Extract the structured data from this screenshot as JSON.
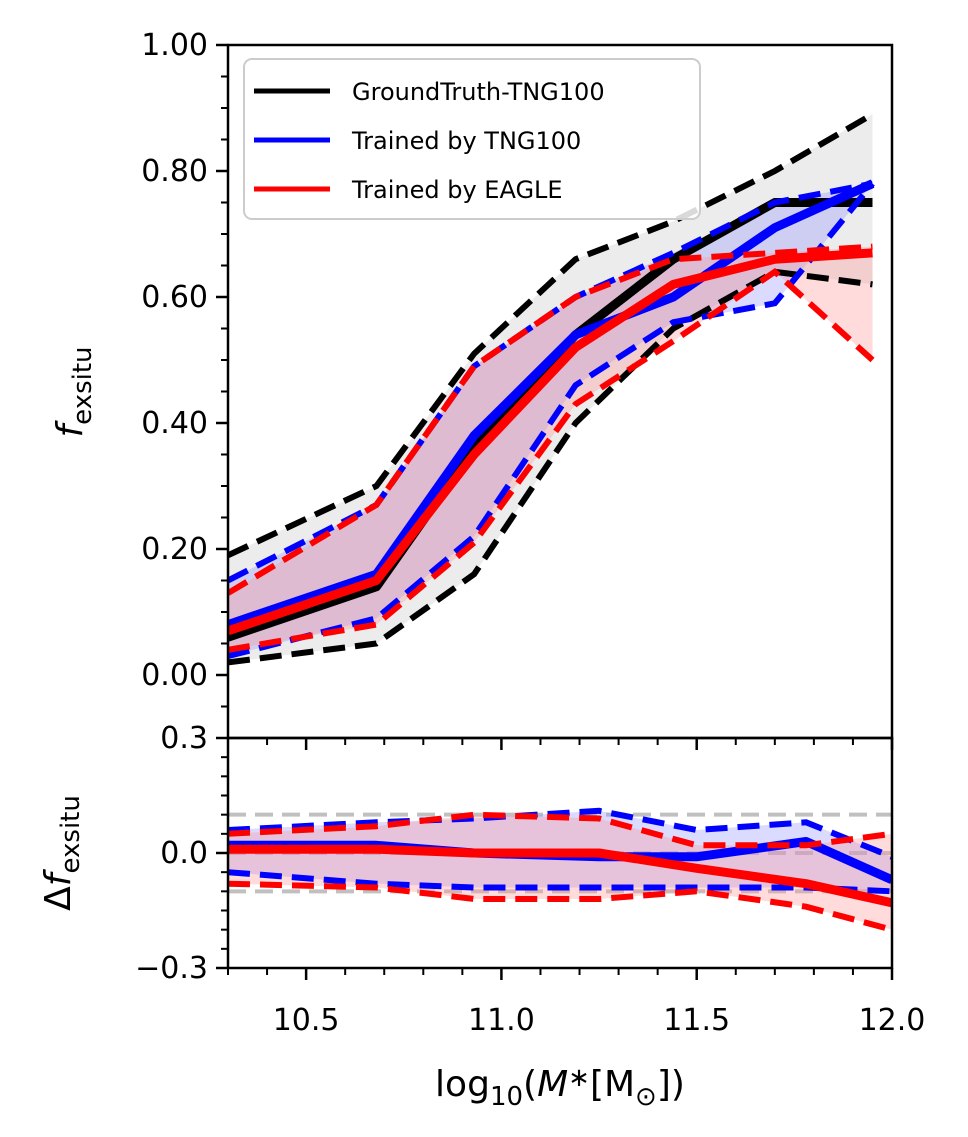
{
  "chart_data": [
    {
      "panel": "top",
      "type": "line",
      "ylabel": "f_exsitu",
      "ylim": [
        -0.1,
        1.0
      ],
      "xlim": [
        10.3,
        12.0
      ],
      "yticks": [
        "0.00",
        "0.20",
        "0.40",
        "0.60",
        "0.80",
        "1.00"
      ],
      "ytick_values": [
        0.0,
        0.2,
        0.4,
        0.6,
        0.8,
        1.0
      ],
      "legend": {
        "placement": "top-left",
        "entries": [
          "GroundTruth-TNG100",
          "Trained by TNG100",
          "Trained by EAGLE"
        ]
      },
      "series": [
        {
          "name": "GroundTruth-TNG100",
          "color": "#000000",
          "x": [
            10.3,
            10.68,
            10.93,
            11.19,
            11.44,
            11.7,
            11.95
          ],
          "median": [
            0.06,
            0.14,
            0.36,
            0.54,
            0.66,
            0.75,
            0.75
          ],
          "upper": [
            0.19,
            0.3,
            0.51,
            0.66,
            0.72,
            0.8,
            0.89
          ],
          "lower": [
            0.02,
            0.05,
            0.16,
            0.4,
            0.55,
            0.64,
            0.62
          ],
          "band_color": "#c8c8c8"
        },
        {
          "name": "Trained by TNG100",
          "color": "#0000ff",
          "x": [
            10.3,
            10.68,
            10.93,
            11.19,
            11.44,
            11.7,
            11.95
          ],
          "median": [
            0.08,
            0.16,
            0.38,
            0.54,
            0.6,
            0.71,
            0.78
          ],
          "upper": [
            0.15,
            0.27,
            0.49,
            0.6,
            0.67,
            0.75,
            0.78
          ],
          "lower": [
            0.03,
            0.09,
            0.22,
            0.46,
            0.56,
            0.59,
            0.78
          ],
          "band_color": "#9999ff"
        },
        {
          "name": "Trained by EAGLE",
          "color": "#ff0000",
          "x": [
            10.3,
            10.68,
            10.93,
            11.19,
            11.44,
            11.7,
            11.95
          ],
          "median": [
            0.07,
            0.15,
            0.35,
            0.52,
            0.62,
            0.66,
            0.67
          ],
          "upper": [
            0.13,
            0.27,
            0.49,
            0.6,
            0.66,
            0.67,
            0.68
          ],
          "lower": [
            0.04,
            0.08,
            0.21,
            0.43,
            0.53,
            0.64,
            0.5
          ],
          "band_color": "#ff9999"
        }
      ]
    },
    {
      "panel": "bottom",
      "type": "line",
      "xlabel": "log10(M*[M⊙])",
      "ylabel": "Δf_exsitu",
      "ylim": [
        -0.3,
        0.3
      ],
      "xlim": [
        10.3,
        12.0
      ],
      "xticks": [
        "10.5",
        "11.0",
        "11.5",
        "12.0"
      ],
      "xtick_values": [
        10.5,
        11.0,
        11.5,
        12.0
      ],
      "yticks": [
        "−0.3",
        "0.0",
        "0.3"
      ],
      "ytick_values": [
        -0.3,
        0.0,
        0.3
      ],
      "reference_lines": [
        0.1,
        0.0,
        -0.1
      ],
      "series": [
        {
          "name": "Trained by TNG100",
          "color": "#0000ff",
          "x": [
            10.3,
            10.68,
            10.93,
            11.25,
            11.5,
            11.78,
            12.0
          ],
          "median": [
            0.02,
            0.02,
            0.0,
            -0.01,
            -0.01,
            0.03,
            -0.07
          ],
          "upper": [
            0.06,
            0.08,
            0.09,
            0.11,
            0.06,
            0.08,
            -0.01
          ],
          "lower": [
            -0.05,
            -0.08,
            -0.09,
            -0.09,
            -0.09,
            -0.09,
            -0.1
          ],
          "band_color": "#9999ff"
        },
        {
          "name": "Trained by EAGLE",
          "color": "#ff0000",
          "x": [
            10.3,
            10.68,
            10.93,
            11.25,
            11.5,
            11.78,
            12.0
          ],
          "median": [
            0.01,
            0.01,
            0.0,
            0.0,
            -0.04,
            -0.08,
            -0.13
          ],
          "upper": [
            0.05,
            0.07,
            0.1,
            0.09,
            0.02,
            0.02,
            0.05
          ],
          "lower": [
            -0.08,
            -0.09,
            -0.12,
            -0.12,
            -0.1,
            -0.14,
            -0.2
          ],
          "band_color": "#ff9999"
        }
      ]
    }
  ]
}
